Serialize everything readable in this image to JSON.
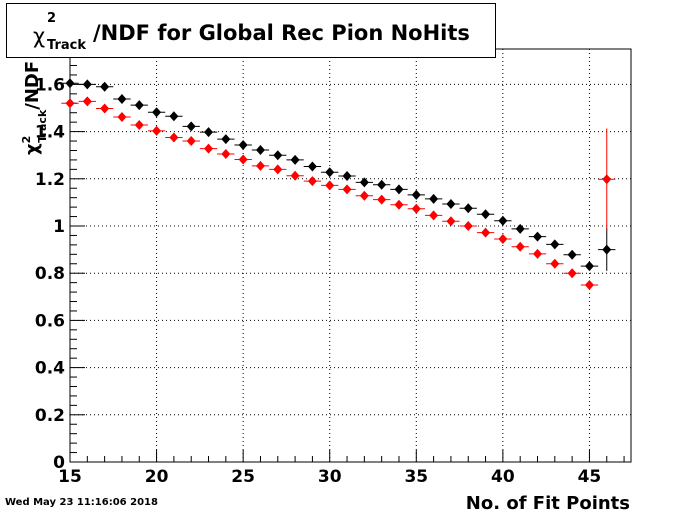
{
  "title": {
    "chi_symbol": "χ",
    "superscript": "2",
    "subscript": "Track",
    "main": "/NDF for Global Rec Pion NoHits"
  },
  "timestamp": "Wed May 23 11:16:06 2018",
  "chart_data": {
    "type": "scatter",
    "title": "χ²_Track/NDF for Global Rec Pion NoHits",
    "xlabel": "No. of Fit Points",
    "ylabel": "χ²_Track/NDF",
    "xlim": [
      15,
      47.4
    ],
    "ylim": [
      0,
      1.75
    ],
    "x_ticks": [
      15,
      20,
      25,
      30,
      35,
      40,
      45
    ],
    "y_ticks": [
      0,
      0.2,
      0.4,
      0.6,
      0.8,
      1,
      1.2,
      1.4,
      1.6
    ],
    "y_tick_labels": [
      "0",
      "0.2",
      "0.4",
      "0.6",
      "0.8",
      "1",
      "1.2",
      "1.4",
      "1.6"
    ],
    "grid": true,
    "series": [
      {
        "color": "#000000",
        "x": [
          15,
          16,
          17,
          18,
          19,
          20,
          21,
          22,
          23,
          24,
          25,
          26,
          27,
          28,
          29,
          30,
          31,
          32,
          33,
          34,
          35,
          36,
          37,
          38,
          39,
          40,
          41,
          42,
          43,
          44,
          45,
          46
        ],
        "y": [
          1.605,
          1.6,
          1.59,
          1.538,
          1.512,
          1.482,
          1.465,
          1.422,
          1.398,
          1.368,
          1.343,
          1.322,
          1.3,
          1.28,
          1.252,
          1.228,
          1.212,
          1.185,
          1.175,
          1.155,
          1.132,
          1.115,
          1.093,
          1.075,
          1.05,
          1.022,
          0.988,
          0.955,
          0.922,
          0.878,
          0.83,
          0.9
        ],
        "yerr": [
          0,
          0,
          0,
          0,
          0,
          0,
          0,
          0,
          0,
          0,
          0,
          0,
          0,
          0,
          0,
          0,
          0,
          0,
          0,
          0,
          0,
          0,
          0,
          0,
          0,
          0,
          0,
          0,
          0,
          0,
          0.015,
          0.09
        ]
      },
      {
        "color": "#ff0000",
        "x": [
          15,
          16,
          17,
          18,
          19,
          20,
          21,
          22,
          23,
          24,
          25,
          26,
          27,
          28,
          29,
          30,
          31,
          32,
          33,
          34,
          35,
          36,
          37,
          38,
          39,
          40,
          41,
          42,
          43,
          44,
          45,
          46
        ],
        "y": [
          1.52,
          1.528,
          1.498,
          1.462,
          1.428,
          1.403,
          1.375,
          1.36,
          1.328,
          1.305,
          1.282,
          1.255,
          1.24,
          1.213,
          1.19,
          1.172,
          1.155,
          1.128,
          1.112,
          1.09,
          1.073,
          1.045,
          1.02,
          1.0,
          0.972,
          0.945,
          0.912,
          0.882,
          0.84,
          0.8,
          0.75,
          1.198
        ],
        "yerr": [
          0,
          0,
          0,
          0,
          0,
          0,
          0,
          0,
          0,
          0,
          0,
          0,
          0,
          0,
          0,
          0,
          0,
          0,
          0,
          0,
          0,
          0,
          0,
          0,
          0,
          0,
          0,
          0,
          0,
          0,
          0.015,
          0.215
        ]
      }
    ]
  }
}
